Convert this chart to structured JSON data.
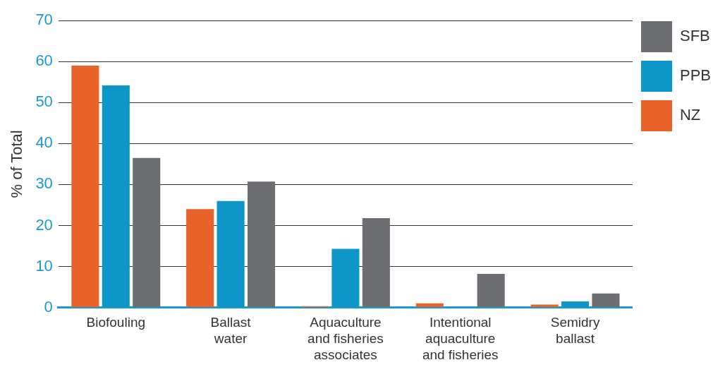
{
  "chart_data": {
    "type": "bar",
    "ylabel": "% of Total",
    "categories": [
      "Biofouling",
      "Ballast\nwater",
      "Aquaculture\nand fisheries\nassociates",
      "Intentional\naquaculture\nand fisheries",
      "Semidry\nballast"
    ],
    "series": [
      {
        "name": "NZ",
        "color": "#e8622a",
        "values": [
          59,
          24,
          0.3,
          1,
          0.7
        ]
      },
      {
        "name": "PPB",
        "color": "#0d96c8",
        "values": [
          54.2,
          26,
          14.3,
          0,
          1.5
        ]
      },
      {
        "name": "SFB",
        "color": "#6d6e71",
        "values": [
          36.5,
          30.7,
          21.8,
          8.2,
          3.4
        ]
      }
    ],
    "ylim": [
      0,
      70
    ],
    "yticks": [
      0,
      10,
      20,
      30,
      40,
      50,
      60,
      70
    ],
    "grid": "y",
    "legend": "top right"
  }
}
